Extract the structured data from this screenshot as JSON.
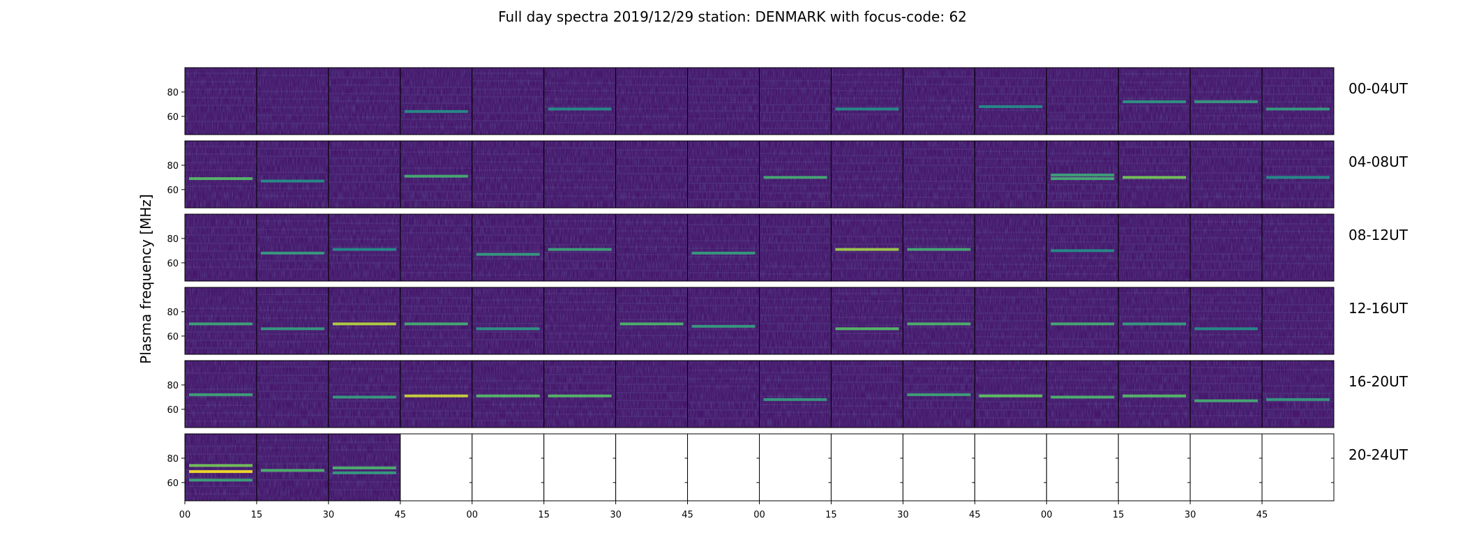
{
  "chart_data": {
    "type": "heatmap",
    "title": "Full day spectra 2019/12/29 station: DENMARK with focus-code: 62",
    "ylabel": "Plasma frequency [MHz]",
    "xlabel": "",
    "ylim": [
      45,
      100
    ],
    "y_ticks": [
      "60",
      "80"
    ],
    "x_ticks": [
      "00",
      "15",
      "30",
      "45",
      "00",
      "15",
      "30",
      "45",
      "00",
      "15",
      "30",
      "45",
      "00",
      "15",
      "30",
      "45"
    ],
    "panels_per_row": 16,
    "panel_minutes": 15,
    "colormap": "viridis",
    "rows": [
      {
        "label": "00-04UT",
        "filled_panels": 16,
        "bands": [
          {
            "panel": 3,
            "freq": 64,
            "intensity": 0.3
          },
          {
            "panel": 5,
            "freq": 66,
            "intensity": 0.3
          },
          {
            "panel": 9,
            "freq": 66,
            "intensity": 0.3
          },
          {
            "panel": 11,
            "freq": 68,
            "intensity": 0.3
          },
          {
            "panel": 13,
            "freq": 72,
            "intensity": 0.35
          },
          {
            "panel": 14,
            "freq": 72,
            "intensity": 0.4
          },
          {
            "panel": 15,
            "freq": 66,
            "intensity": 0.4
          }
        ]
      },
      {
        "label": "04-08UT",
        "filled_panels": 16,
        "bands": [
          {
            "panel": 0,
            "freq": 69,
            "intensity": 0.6
          },
          {
            "panel": 1,
            "freq": 67,
            "intensity": 0.3
          },
          {
            "panel": 3,
            "freq": 71,
            "intensity": 0.5
          },
          {
            "panel": 8,
            "freq": 70,
            "intensity": 0.5
          },
          {
            "panel": 12,
            "freq": 72,
            "intensity": 0.45
          },
          {
            "panel": 12,
            "freq": 69,
            "intensity": 0.5
          },
          {
            "panel": 13,
            "freq": 70,
            "intensity": 0.7
          },
          {
            "panel": 15,
            "freq": 70,
            "intensity": 0.3
          }
        ]
      },
      {
        "label": "08-12UT",
        "filled_panels": 16,
        "bands": [
          {
            "panel": 1,
            "freq": 68,
            "intensity": 0.4
          },
          {
            "panel": 2,
            "freq": 71,
            "intensity": 0.3
          },
          {
            "panel": 4,
            "freq": 67,
            "intensity": 0.4
          },
          {
            "panel": 5,
            "freq": 71,
            "intensity": 0.45
          },
          {
            "panel": 7,
            "freq": 68,
            "intensity": 0.4
          },
          {
            "panel": 9,
            "freq": 71,
            "intensity": 0.8
          },
          {
            "panel": 10,
            "freq": 71,
            "intensity": 0.5
          },
          {
            "panel": 12,
            "freq": 70,
            "intensity": 0.3
          }
        ]
      },
      {
        "label": "12-16UT",
        "filled_panels": 16,
        "bands": [
          {
            "panel": 0,
            "freq": 70,
            "intensity": 0.45
          },
          {
            "panel": 1,
            "freq": 66,
            "intensity": 0.4
          },
          {
            "panel": 2,
            "freq": 70,
            "intensity": 0.85
          },
          {
            "panel": 3,
            "freq": 70,
            "intensity": 0.5
          },
          {
            "panel": 4,
            "freq": 66,
            "intensity": 0.35
          },
          {
            "panel": 6,
            "freq": 70,
            "intensity": 0.55
          },
          {
            "panel": 7,
            "freq": 68,
            "intensity": 0.4
          },
          {
            "panel": 9,
            "freq": 66,
            "intensity": 0.6
          },
          {
            "panel": 10,
            "freq": 70,
            "intensity": 0.55
          },
          {
            "panel": 12,
            "freq": 70,
            "intensity": 0.5
          },
          {
            "panel": 13,
            "freq": 70,
            "intensity": 0.4
          },
          {
            "panel": 14,
            "freq": 66,
            "intensity": 0.3
          }
        ]
      },
      {
        "label": "16-20UT",
        "filled_panels": 16,
        "bands": [
          {
            "panel": 0,
            "freq": 72,
            "intensity": 0.45
          },
          {
            "panel": 2,
            "freq": 70,
            "intensity": 0.4
          },
          {
            "panel": 3,
            "freq": 71,
            "intensity": 0.9
          },
          {
            "panel": 4,
            "freq": 71,
            "intensity": 0.6
          },
          {
            "panel": 5,
            "freq": 71,
            "intensity": 0.6
          },
          {
            "panel": 8,
            "freq": 68,
            "intensity": 0.4
          },
          {
            "panel": 10,
            "freq": 72,
            "intensity": 0.45
          },
          {
            "panel": 11,
            "freq": 71,
            "intensity": 0.65
          },
          {
            "panel": 12,
            "freq": 70,
            "intensity": 0.55
          },
          {
            "panel": 13,
            "freq": 71,
            "intensity": 0.6
          },
          {
            "panel": 14,
            "freq": 67,
            "intensity": 0.5
          },
          {
            "panel": 15,
            "freq": 68,
            "intensity": 0.4
          }
        ]
      },
      {
        "label": "20-24UT",
        "filled_panels": 3,
        "bands": [
          {
            "panel": 0,
            "freq": 69,
            "intensity": 1.0
          },
          {
            "panel": 0,
            "freq": 74,
            "intensity": 0.7
          },
          {
            "panel": 0,
            "freq": 62,
            "intensity": 0.45
          },
          {
            "panel": 1,
            "freq": 70,
            "intensity": 0.55
          },
          {
            "panel": 2,
            "freq": 72,
            "intensity": 0.55
          },
          {
            "panel": 2,
            "freq": 68,
            "intensity": 0.4
          }
        ]
      }
    ]
  }
}
